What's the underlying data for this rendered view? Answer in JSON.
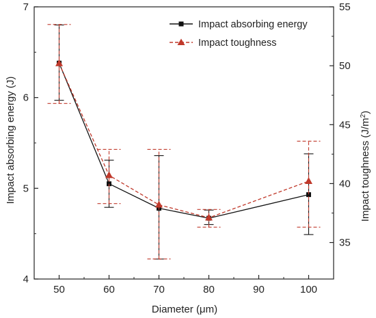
{
  "chart_data": {
    "type": "line",
    "title": "",
    "xlabel": "Diameter (μm)",
    "ylabel_left": "Impact absorbing energy (J)",
    "ylabel_right_prefix": "Impact toughness (J/m",
    "ylabel_right_sup": "2",
    "ylabel_right_suffix": ")",
    "xlim": [
      45,
      105
    ],
    "ylim_left": [
      4,
      7
    ],
    "ylim_right": [
      31.9,
      55
    ],
    "xticks": [
      50,
      60,
      70,
      80,
      90,
      100
    ],
    "yticks_left": [
      4,
      5,
      6,
      7
    ],
    "yticks_right": [
      35,
      40,
      45,
      50,
      55
    ],
    "legend_position": "top-right",
    "grid": false,
    "x": [
      50,
      60,
      70,
      80,
      100
    ],
    "series": [
      {
        "name": "Impact absorbing energy",
        "axis": "left",
        "color": "#111111",
        "marker": "square",
        "line_style": "solid",
        "values": [
          6.38,
          5.05,
          4.78,
          4.67,
          4.93
        ],
        "err_low": [
          5.97,
          4.79,
          4.22,
          4.6,
          4.49
        ],
        "err_high": [
          6.8,
          5.31,
          5.36,
          4.76,
          5.38
        ]
      },
      {
        "name": "Impact toughness",
        "axis": "right",
        "color": "#c0392b",
        "marker": "triangle",
        "line_style": "dashed",
        "values": [
          50.2,
          40.7,
          38.2,
          37.1,
          40.2
        ],
        "err_low": [
          46.8,
          38.3,
          33.6,
          36.3,
          36.3
        ],
        "err_high": [
          53.5,
          42.9,
          42.9,
          37.8,
          43.6
        ]
      }
    ]
  }
}
